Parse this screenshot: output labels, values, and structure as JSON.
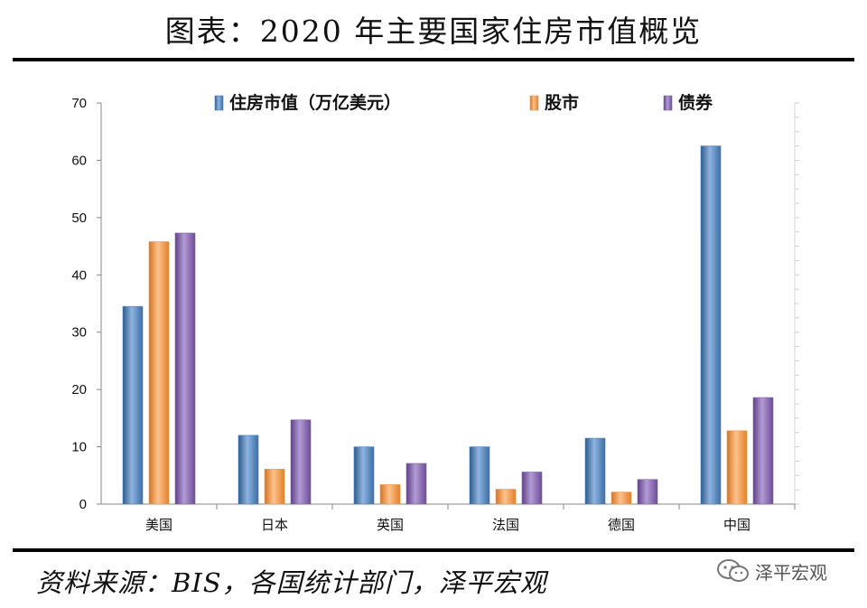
{
  "title": "图表：2020 年主要国家住房市值概览",
  "source": "资料来源：BIS，各国统计部门，泽平宏观",
  "watermark": "泽平宏观",
  "chart_data": {
    "type": "bar",
    "categories": [
      "美国",
      "日本",
      "英国",
      "法国",
      "德国",
      "中国"
    ],
    "series": [
      {
        "name": "住房市值（万亿美元）",
        "values": [
          34.5,
          12.0,
          10.0,
          10.0,
          11.5,
          62.5
        ],
        "color": "#4f81bd"
      },
      {
        "name": "股市",
        "values": [
          45.8,
          6.1,
          3.4,
          2.6,
          2.1,
          12.8
        ],
        "color": "#f79646"
      },
      {
        "name": "债券",
        "values": [
          47.3,
          14.7,
          7.1,
          5.6,
          4.3,
          18.6
        ],
        "color": "#8064a2"
      }
    ],
    "ylim": [
      0,
      70
    ],
    "yticks": [
      0,
      10,
      20,
      30,
      40,
      50,
      60,
      70
    ],
    "legend_position": "top",
    "grid": false
  }
}
